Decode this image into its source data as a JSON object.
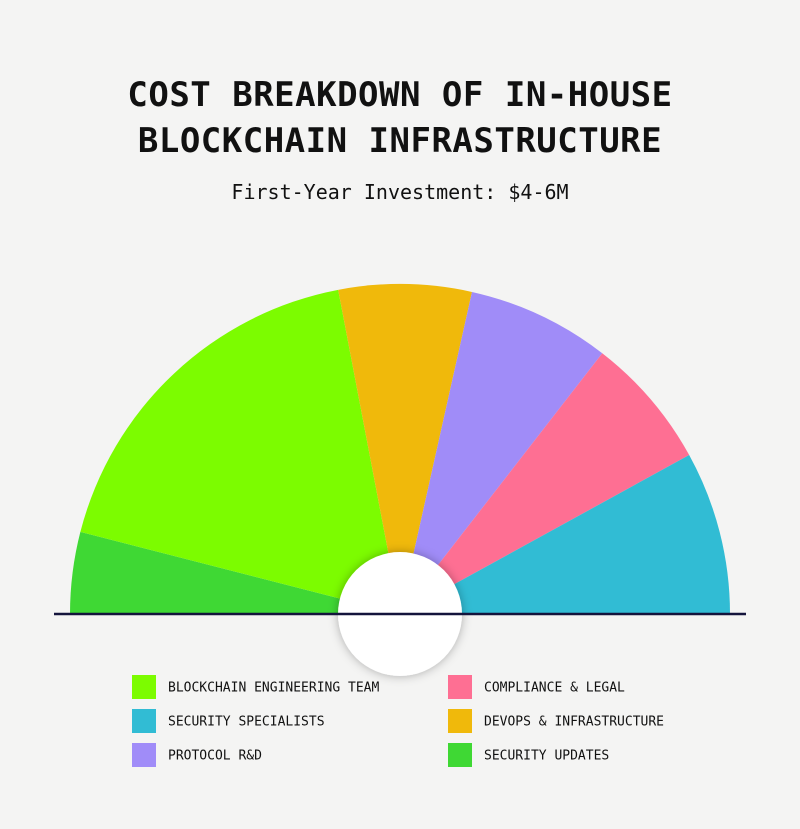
{
  "chart_data": {
    "type": "semi-donut",
    "title": "COST BREAKDOWN OF IN-HOUSE BLOCKCHAIN INFRASTRUCTURE",
    "subtitle": "First-Year Investment: $4-6M",
    "categories": [
      "SECURITY UPDATES",
      "BLOCKCHAIN ENGINEERING TEAM",
      "DEVOPS & INFRASTRUCTURE",
      "PROTOCOL R&D",
      "COMPLIANCE & LEGAL",
      "SECURITY SPECIALISTS"
    ],
    "values": [
      8,
      36,
      13,
      14,
      13,
      16
    ],
    "colors": [
      "#3fd834",
      "#7cfc00",
      "#f0b90b",
      "#a08cf8",
      "#fe6f93",
      "#31bcd4"
    ]
  }
}
